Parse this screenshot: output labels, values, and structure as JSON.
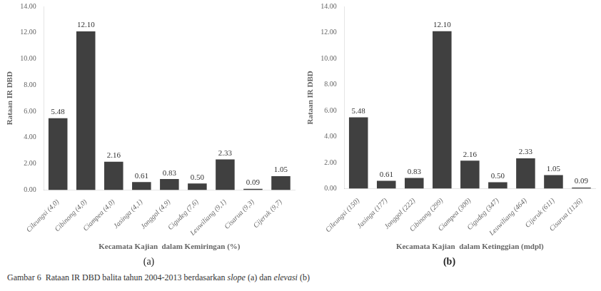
{
  "chart_data": [
    {
      "type": "bar",
      "subtitle": "(a)",
      "x_label": "Kecamata Kajian  dalam Kemiringan (%)",
      "y_label": "Rataan IR DBD",
      "categories": [
        "Cileungsi (4,0)",
        "Cibinong (4,0)",
        "Ciampea (4,0)",
        "Jasinga (4,1)",
        "Jonggol (4,9)",
        "Cigudeg (7,6)",
        "Leuwiliang (9,1)",
        "Cisarua (9,3)",
        "Cijeruk (9,7)"
      ],
      "values": [
        5.48,
        12.1,
        2.16,
        0.61,
        0.83,
        0.5,
        2.33,
        0.09,
        1.05
      ],
      "value_labels": [
        "5.48",
        "12.10",
        "2.16",
        "0.61",
        "0.83",
        "0.50",
        "2.33",
        "0.09",
        "1.05"
      ],
      "color": "#404040",
      "ylim": [
        0,
        14
      ],
      "yticks": [
        {
          "value": 0,
          "label": "0.00"
        },
        {
          "value": 2,
          "label": "2.00"
        },
        {
          "value": 4,
          "label": "4.00"
        },
        {
          "value": 6,
          "label": "6.00"
        },
        {
          "value": 8,
          "label": "8.00"
        },
        {
          "value": 10,
          "label": "10.00"
        },
        {
          "value": 12,
          "label": "12.00"
        },
        {
          "value": 14,
          "label": "14.00"
        }
      ],
      "grid": false,
      "data_labels": true
    },
    {
      "type": "bar",
      "subtitle": "(b)",
      "x_label": "Kecamata Kajian  dalam Ketinggian (mdpl)",
      "y_label": "Rataan IR DBD",
      "categories": [
        "Cileungsi (150)",
        "Jasinga (177)",
        "Jonggol (222)",
        "Cibinong (299)",
        "Ciampea (300)",
        "Cigudeg (347)",
        "Leuwiliang (464)",
        "Cijeruk (611)",
        "Cisarua (1126)"
      ],
      "values": [
        5.48,
        0.61,
        0.83,
        12.1,
        2.16,
        0.5,
        2.33,
        1.05,
        0.09
      ],
      "value_labels": [
        "5.48",
        "0.61",
        "0.83",
        "12.10",
        "2.16",
        "0.50",
        "2.33",
        "1.05",
        "0.09"
      ],
      "color": "#404040",
      "ylim": [
        0,
        14
      ],
      "yticks": [
        {
          "value": 0,
          "label": "0.00"
        },
        {
          "value": 2,
          "label": "2.00"
        },
        {
          "value": 4,
          "label": "4.00"
        },
        {
          "value": 6,
          "label": "6.00"
        },
        {
          "value": 8,
          "label": "8.00"
        },
        {
          "value": 10,
          "label": "10.00"
        },
        {
          "value": 12,
          "label": "12.00"
        },
        {
          "value": 14,
          "label": "14.00"
        }
      ],
      "grid": false,
      "data_labels": true
    }
  ],
  "caption": [
    "Gambar 6  Rataan IR DBD balita tahun 2004-2013 berdasarkan ",
    "slope",
    " (a) dan ",
    "elevasi",
    " (b)"
  ]
}
